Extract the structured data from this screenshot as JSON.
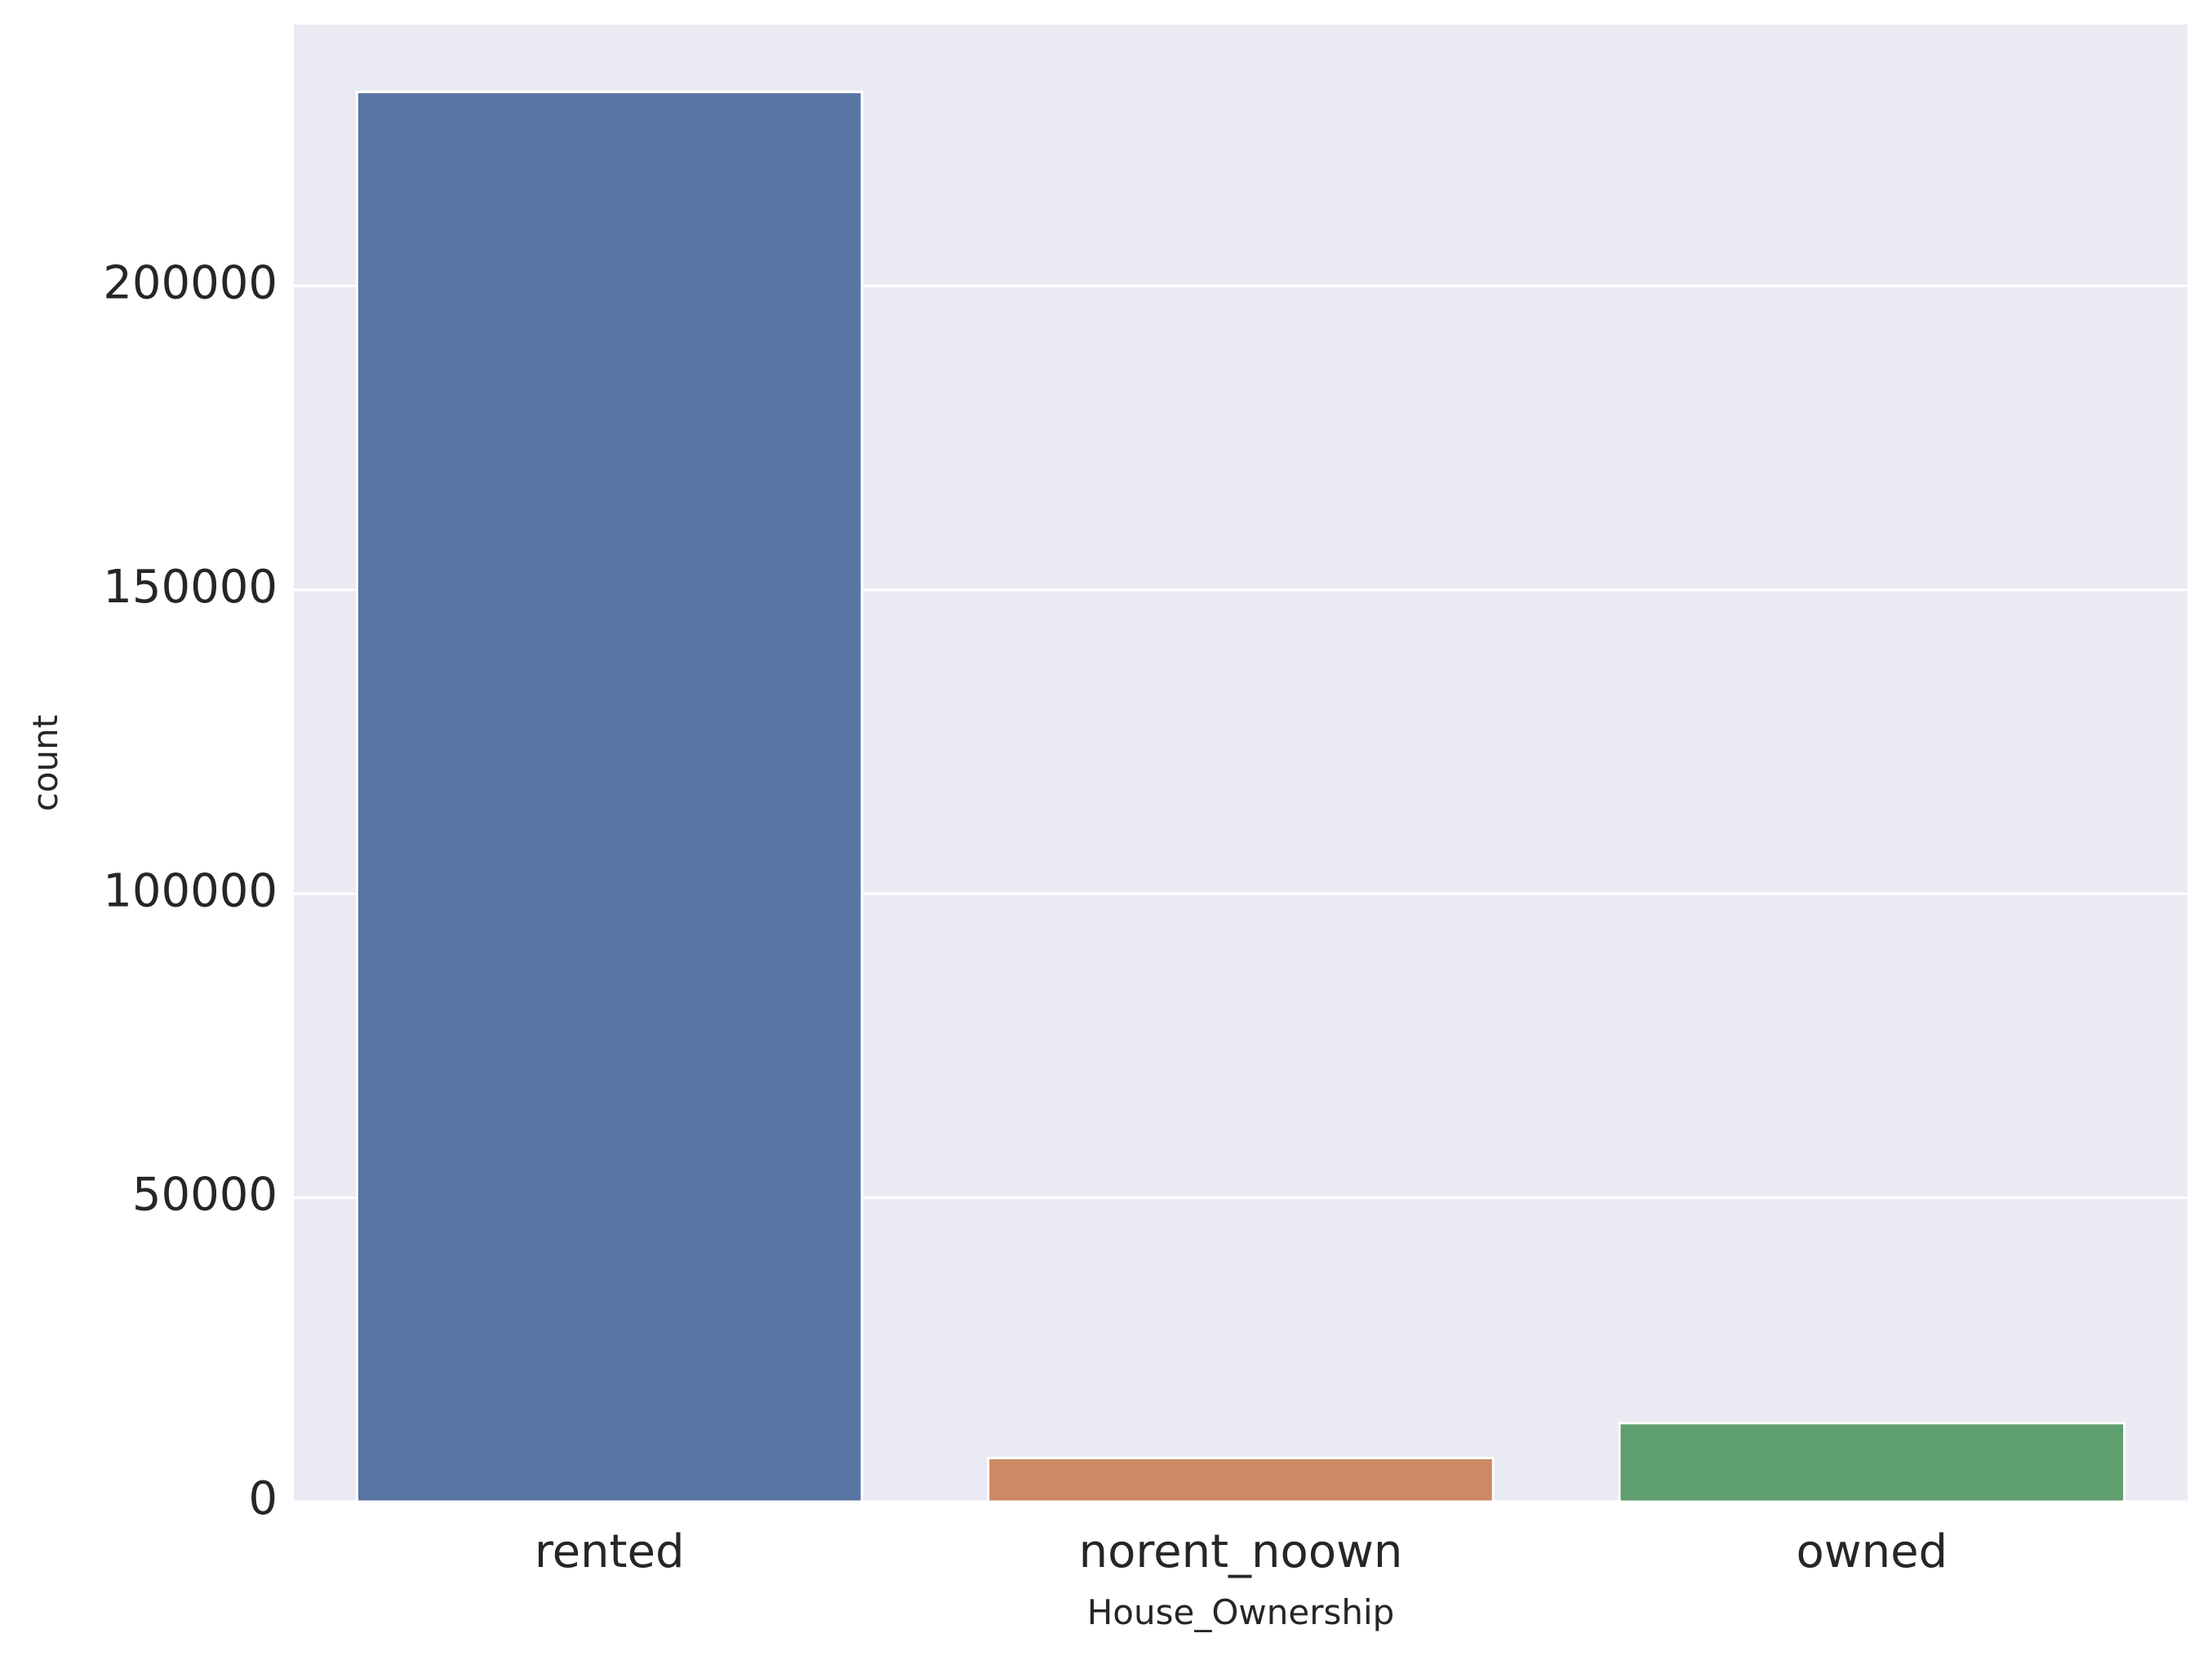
{
  "chart_data": {
    "type": "bar",
    "categories": [
      "rented",
      "norent_noown",
      "owned"
    ],
    "values": [
      231898,
      7184,
      12918
    ],
    "title": "",
    "xlabel": "House_Ownership",
    "ylabel": "count",
    "ylim": [
      0,
      243000
    ],
    "yticks": [
      0,
      50000,
      100000,
      150000,
      200000
    ],
    "ytick_labels": [
      "0",
      "50000",
      "100000",
      "150000",
      "200000"
    ],
    "grid": true,
    "colors": [
      "#5975a4",
      "#cc8963",
      "#5f9e6e"
    ],
    "background": "#eaeaf2",
    "gridline_color": "#ffffff"
  }
}
